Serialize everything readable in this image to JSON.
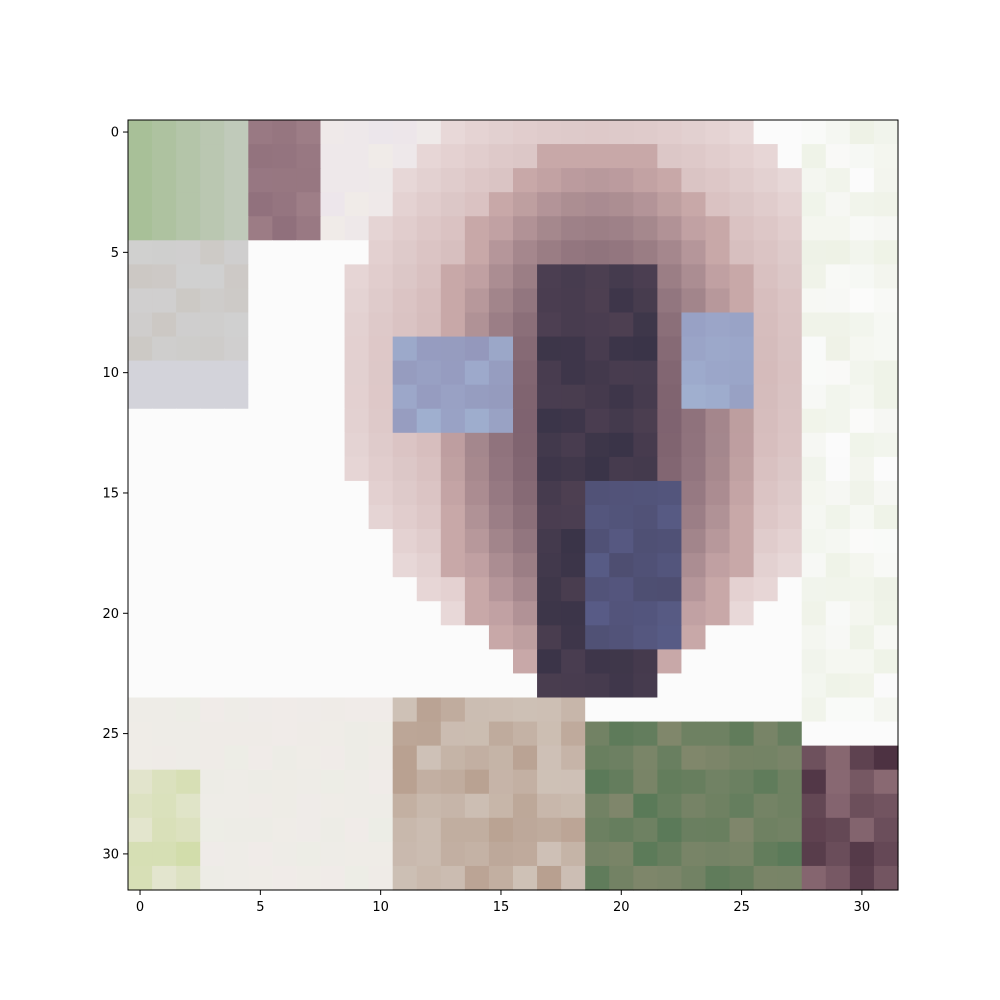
{
  "chart_data": {
    "type": "heatmap",
    "title": "",
    "xlabel": "",
    "ylabel": "",
    "grid": false,
    "xlim": [
      -0.5,
      31.5
    ],
    "ylim": [
      31.5,
      -0.5
    ],
    "x_ticks": [
      "0",
      "5",
      "10",
      "15",
      "20",
      "25",
      "30"
    ],
    "y_ticks": [
      "0",
      "5",
      "10",
      "15",
      "20",
      "25",
      "30"
    ],
    "image": {
      "width": 32,
      "height": 32,
      "content": "pixelated image of a Siamese cat face with dark brown-gray mask, blue eyes, light cream fur, greenish background at left and lower right"
    }
  },
  "palette": {
    "white": "#fbfbfb",
    "cream": "#f0ebe8",
    "pink_light": "#e8d8d8",
    "rose": "#c8a8a8",
    "mauve": "#a08088",
    "dark_mauve": "#6a5060",
    "dark_navy": "#3a3448",
    "blue_gray": "#5a5e8a",
    "eye_blue": "#a0b0d0",
    "sage": "#a8c098",
    "green_dark": "#5a7a58",
    "olive": "#8a8a70",
    "tan": "#b8a090",
    "gray_light": "#d0d0d0",
    "maroon_dark": "#4a3040",
    "axis": "#000000"
  }
}
